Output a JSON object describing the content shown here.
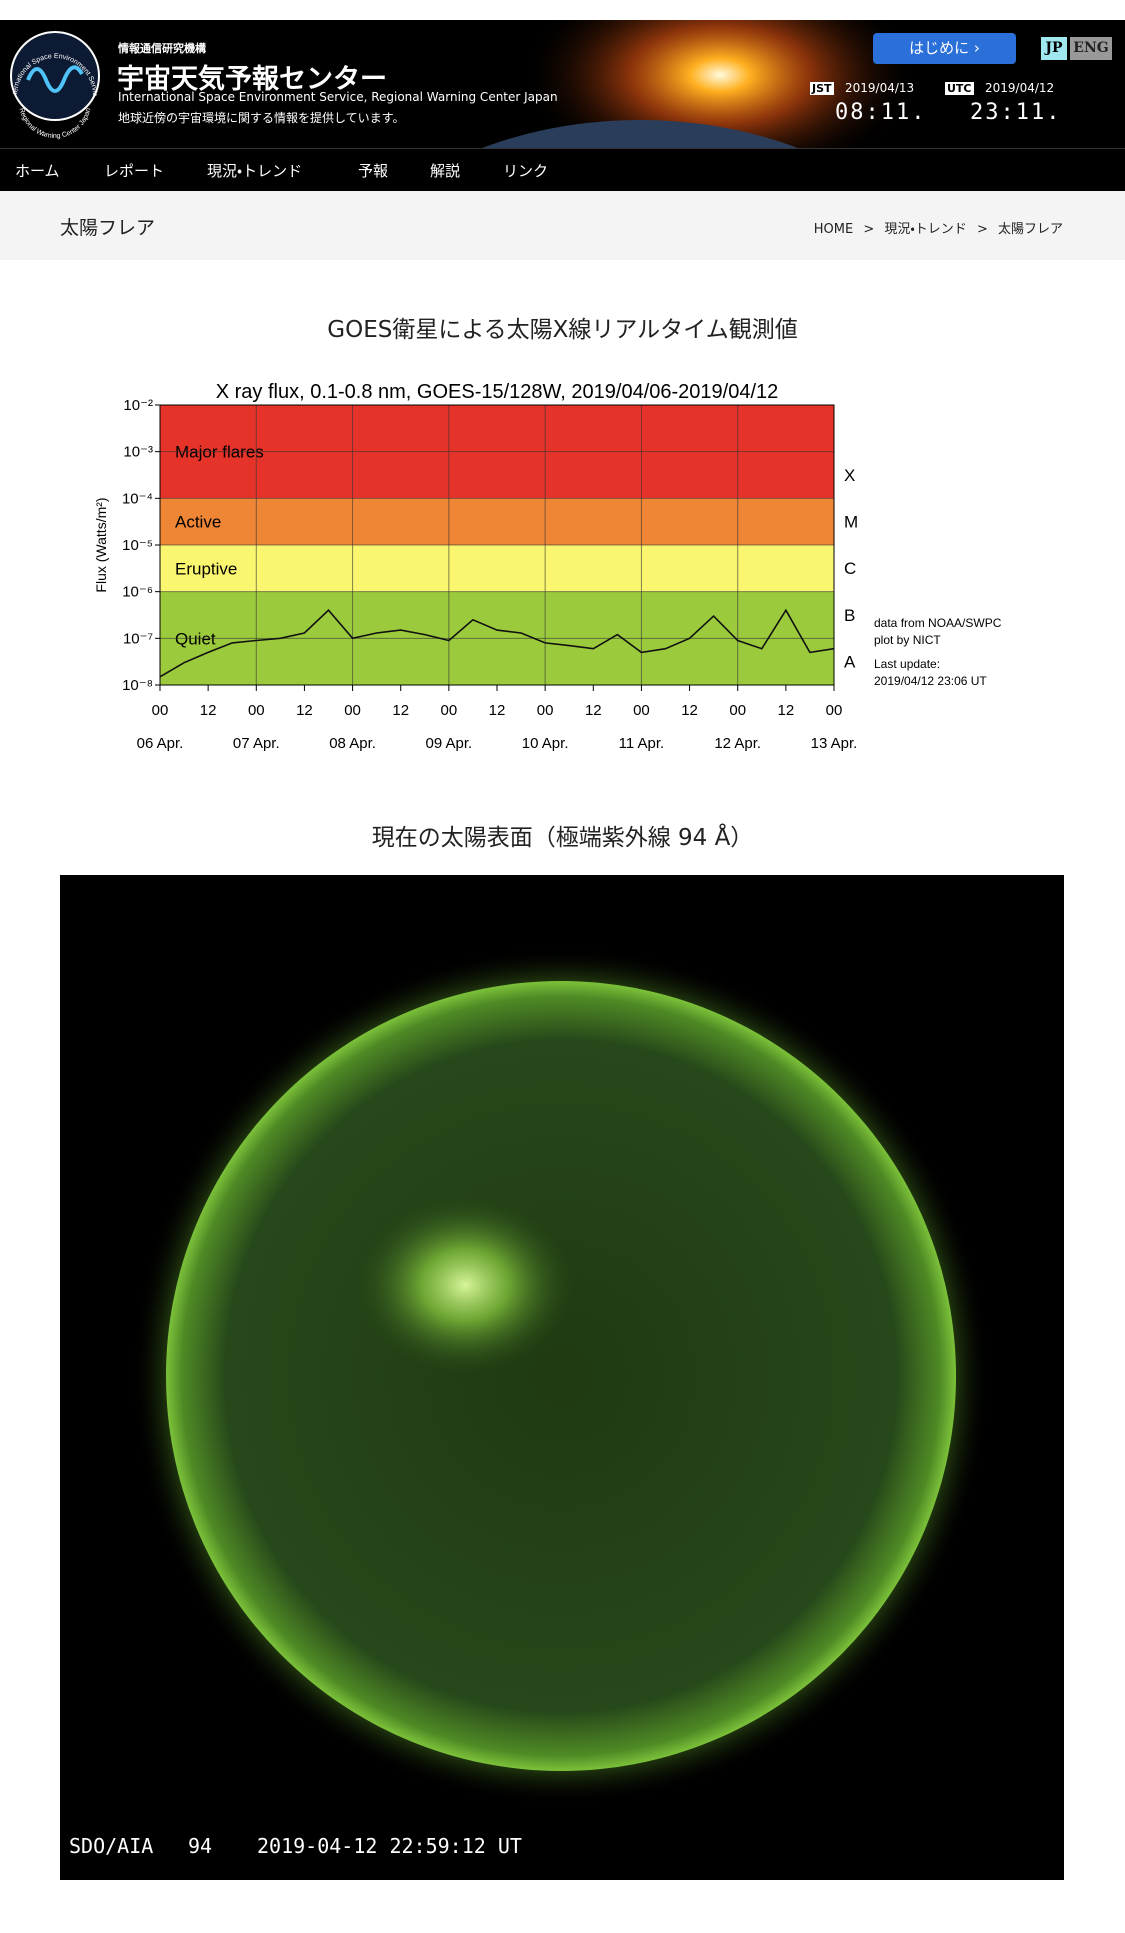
{
  "header": {
    "org": "情報通信研究機構",
    "title": "宇宙天気予報センター",
    "subtitle_en": "International Space Environment Service, Regional Warning Center Japan",
    "tagline": "地球近傍の宇宙環境に関する情報を提供しています。",
    "logo_top": "International Space Environment Service",
    "logo_bottom": "Regional Warning Center Japan",
    "intro_button": "はじめに",
    "lang_jp": "JP",
    "lang_en": "ENG",
    "jst_label": "JST",
    "jst_date": "2019/04/13",
    "jst_time": "08:11.",
    "utc_label": "UTC",
    "utc_date": "2019/04/12",
    "utc_time": "23:11."
  },
  "nav": [
    "ホーム",
    "レポート",
    "現況・トレンド",
    "予報",
    "解説",
    "リンク"
  ],
  "breadcrumb": {
    "page_title": "太陽フレア",
    "items": [
      "HOME",
      "現況・トレンド",
      "太陽フレア"
    ],
    "separator": ">"
  },
  "xray_section": {
    "title": "GOES衛星による太陽X線リアルタイム観測値"
  },
  "chart_data": {
    "type": "line",
    "title": "X ray flux, 0.1-0.8 nm, GOES-15/128W, 2019/04/06-2019/04/12",
    "y_label": "Flux (Watts/m²)",
    "log_scale": true,
    "grid": true,
    "xlim": [
      0,
      168
    ],
    "ylim": [
      1e-08,
      0.01
    ],
    "yticks": [
      {
        "value": 1e-08,
        "label": "10⁻⁸"
      },
      {
        "value": 1e-07,
        "label": "10⁻⁷"
      },
      {
        "value": 1e-06,
        "label": "10⁻⁶"
      },
      {
        "value": 1e-05,
        "label": "10⁻⁵"
      },
      {
        "value": 0.0001,
        "label": "10⁻⁴"
      },
      {
        "value": 0.001,
        "label": "10⁻³"
      },
      {
        "value": 0.01,
        "label": "10⁻²"
      }
    ],
    "xticks": [
      {
        "value": 0,
        "label": "00"
      },
      {
        "value": 12,
        "label": "12"
      },
      {
        "value": 24,
        "label": "00"
      },
      {
        "value": 36,
        "label": "12"
      },
      {
        "value": 48,
        "label": "00"
      },
      {
        "value": 60,
        "label": "12"
      },
      {
        "value": 72,
        "label": "00"
      },
      {
        "value": 84,
        "label": "12"
      },
      {
        "value": 96,
        "label": "00"
      },
      {
        "value": 108,
        "label": "12"
      },
      {
        "value": 120,
        "label": "00"
      },
      {
        "value": 132,
        "label": "12"
      },
      {
        "value": 144,
        "label": "00"
      },
      {
        "value": 156,
        "label": "12"
      },
      {
        "value": 168,
        "label": "00"
      }
    ],
    "date_ticks": [
      {
        "value": 0,
        "label": "06 Apr."
      },
      {
        "value": 24,
        "label": "07 Apr."
      },
      {
        "value": 48,
        "label": "08 Apr."
      },
      {
        "value": 72,
        "label": "09 Apr."
      },
      {
        "value": 96,
        "label": "10 Apr."
      },
      {
        "value": 120,
        "label": "11 Apr."
      },
      {
        "value": 144,
        "label": "12 Apr."
      },
      {
        "value": 168,
        "label": "13 Apr."
      }
    ],
    "bands": [
      {
        "label": "Major flares",
        "range": [
          0.0001,
          0.01
        ],
        "color": "#e6332a"
      },
      {
        "label": "Active",
        "range": [
          1e-05,
          0.0001
        ],
        "color": "#ef8636"
      },
      {
        "label": "Eruptive",
        "range": [
          1e-06,
          1e-05
        ],
        "color": "#fbf66f"
      },
      {
        "label": "Quiet",
        "range": [
          1e-08,
          1e-06
        ],
        "color": "#9bcb3c"
      }
    ],
    "classes": [
      {
        "label": "X",
        "value": 0.00032
      },
      {
        "label": "M",
        "value": 3.2e-05
      },
      {
        "label": "C",
        "value": 3.2e-06
      },
      {
        "label": "B",
        "value": 3.2e-07
      },
      {
        "label": "A",
        "value": 3.2e-08
      }
    ],
    "notes": [
      "data from NOAA/SWPC",
      "plot by NICT",
      "Last update:",
      "2019/04/12 23:06 UT"
    ],
    "x": [
      0,
      6,
      12,
      18,
      24,
      30,
      36,
      42,
      48,
      54,
      60,
      66,
      72,
      78,
      84,
      90,
      96,
      102,
      108,
      114,
      120,
      126,
      132,
      138,
      144,
      150,
      156,
      162,
      168
    ],
    "series": [
      {
        "name": "GOES-15",
        "color": "#111111",
        "values": [
          1.5e-08,
          3e-08,
          5e-08,
          8e-08,
          9e-08,
          1e-07,
          1.3e-07,
          4e-07,
          1e-07,
          1.3e-07,
          1.5e-07,
          1.2e-07,
          9e-08,
          2.5e-07,
          1.5e-07,
          1.3e-07,
          8e-08,
          7e-08,
          6e-08,
          1.2e-07,
          5e-08,
          6e-08,
          1e-07,
          3e-07,
          9e-08,
          6e-08,
          4e-07,
          5e-08,
          6e-08
        ]
      }
    ]
  },
  "euv_section": {
    "title": "現在の太陽表面（極端紫外線 94 Å）",
    "caption_instrument": "SDO/AIA",
    "caption_wavelength": "94",
    "caption_time": "2019-04-12 22:59:12 UT"
  }
}
